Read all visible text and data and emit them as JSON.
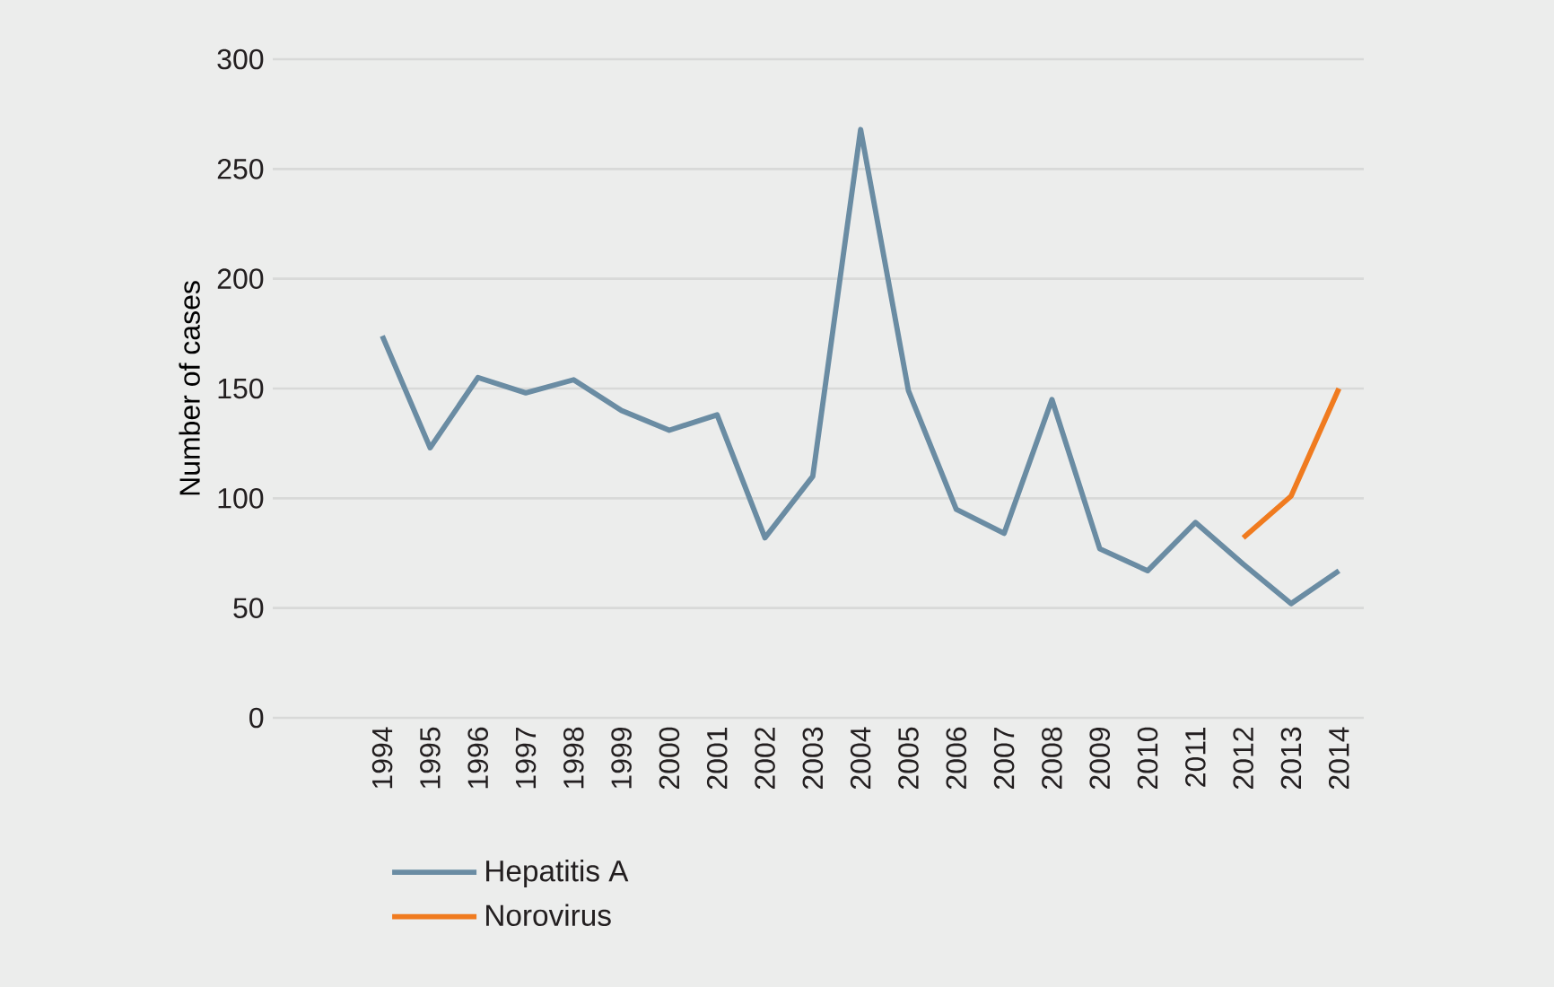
{
  "chart_data": {
    "type": "line",
    "ylabel": "Number of cases",
    "categories": [
      "1994",
      "1995",
      "1996",
      "1997",
      "1998",
      "1999",
      "2000",
      "2001",
      "2002",
      "2003",
      "2004",
      "2005",
      "2006",
      "2007",
      "2008",
      "2009",
      "2010",
      "2011",
      "2012",
      "2013",
      "2014"
    ],
    "series": [
      {
        "name": "Hepatitis A",
        "color": "#6a8ca3",
        "values": [
          174,
          123,
          155,
          148,
          154,
          140,
          131,
          138,
          82,
          110,
          268,
          149,
          95,
          84,
          145,
          77,
          67,
          89,
          70,
          52,
          67
        ]
      },
      {
        "name": "Norovirus",
        "color": "#f07b1f",
        "values": [
          null,
          null,
          null,
          null,
          null,
          null,
          null,
          null,
          null,
          null,
          null,
          null,
          null,
          null,
          null,
          null,
          null,
          null,
          82,
          101,
          150
        ]
      }
    ],
    "ylim": [
      0,
      300
    ],
    "yticks": [
      0,
      50,
      100,
      150,
      200,
      250,
      300
    ],
    "grid": "y",
    "legend": "bottom left",
    "marker": "none",
    "line_style": "solid"
  }
}
